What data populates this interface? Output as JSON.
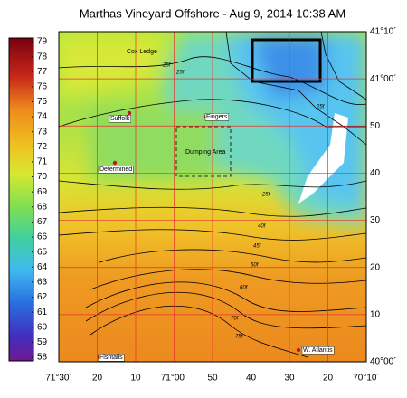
{
  "title": "Marthas Vineyard Offshore - Aug 9, 2014 10:38 AM",
  "colorbar": {
    "labels": [
      79,
      78,
      77,
      76,
      75,
      74,
      73,
      72,
      71,
      70,
      69,
      68,
      67,
      66,
      65,
      64,
      63,
      62,
      61,
      60,
      59,
      58
    ]
  },
  "lon_ticks": [
    "71°30´",
    "20",
    "10",
    "71°00´",
    "50",
    "40",
    "30",
    "20",
    "70°10´"
  ],
  "lat_ticks": [
    "41°10´",
    "41°00´",
    "50",
    "40",
    "30",
    "20",
    "10",
    "40°00´"
  ],
  "places": [
    "Cox Ledge",
    "Suffolk",
    "Fingers",
    "Determined",
    "Dumping Area",
    "Fishtails",
    "W. Atlantis"
  ],
  "contour_labels": [
    "25f",
    "25f",
    "25f",
    "25f",
    "40f",
    "45f",
    "50f",
    "60f",
    "70f",
    "75f"
  ]
}
